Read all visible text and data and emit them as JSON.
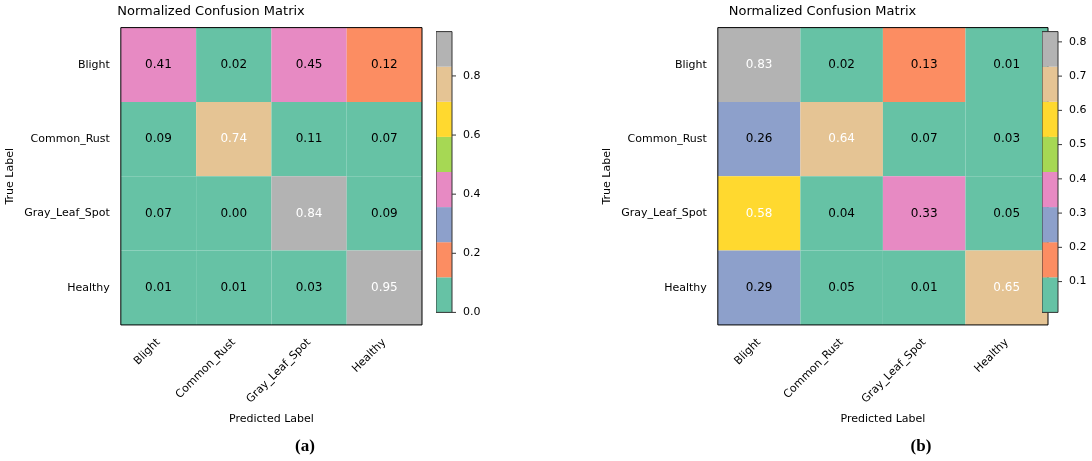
{
  "chart_data": [
    {
      "type": "heatmap",
      "title": "Normalized Confusion Matrix",
      "xlabel": "Predicted Label",
      "ylabel": "True Label",
      "categories": [
        "Blight",
        "Common_Rust",
        "Gray_Leaf_Spot",
        "Healthy"
      ],
      "y_categories": [
        "Blight",
        "Common_Rust",
        "Gray_Leaf_Spot",
        "Healthy"
      ],
      "cells": [
        [
          0.41,
          0.02,
          0.45,
          0.12
        ],
        [
          0.09,
          0.74,
          0.11,
          0.07
        ],
        [
          0.07,
          0.0,
          0.84,
          0.09
        ],
        [
          0.01,
          0.01,
          0.03,
          0.95
        ]
      ],
      "cell_labels": [
        [
          "0.41",
          "0.02",
          "0.45",
          "0.12"
        ],
        [
          "0.09",
          "0.74",
          "0.11",
          "0.07"
        ],
        [
          "0.07",
          "0.00",
          "0.84",
          "0.09"
        ],
        [
          "0.01",
          "0.01",
          "0.03",
          "0.95"
        ]
      ],
      "clim": [
        0,
        0.95
      ],
      "data_labels": true,
      "cticks": [
        {
          "value": 0,
          "label": "0.0"
        },
        0.2,
        0.4,
        0.6,
        0.8
      ],
      "colors": [
        "#66c2a5",
        "#fc8d62",
        "#8da0cb",
        "#e78ac3",
        "#a6d854",
        "#ffd92f",
        "#e5c494",
        "#b3b3b3"
      ],
      "annotations": [
        "(a)"
      ]
    },
    {
      "type": "heatmap",
      "title": "Normalized Confusion Matrix",
      "xlabel": "Predicted Label",
      "ylabel": "True Label",
      "categories": [
        "Blight",
        "Common_Rust",
        "Gray_Leaf_Spot",
        "Healthy"
      ],
      "y_categories": [
        "Blight",
        "Common_Rust",
        "Gray_Leaf_Spot",
        "Healthy"
      ],
      "cells": [
        [
          0.83,
          0.02,
          0.13,
          0.01
        ],
        [
          0.26,
          0.64,
          0.07,
          0.03
        ],
        [
          0.58,
          0.04,
          0.33,
          0.05
        ],
        [
          0.29,
          0.05,
          0.01,
          0.65
        ]
      ],
      "cell_labels": [
        [
          "0.83",
          "0.02",
          "0.13",
          "0.01"
        ],
        [
          "0.26",
          "0.64",
          "0.07",
          "0.03"
        ],
        [
          "0.58",
          "0.04",
          "0.33",
          "0.05"
        ],
        [
          "0.29",
          "0.05",
          "0.01",
          "0.65"
        ]
      ],
      "clim": [
        0.01,
        0.83
      ],
      "data_labels": true,
      "cticks": [
        0.1,
        0.2,
        0.3,
        0.4,
        0.5,
        0.6,
        0.7,
        0.8
      ],
      "colors": [
        "#66c2a5",
        "#fc8d62",
        "#8da0cb",
        "#e78ac3",
        "#a6d854",
        "#ffd92f",
        "#e5c494",
        "#b3b3b3"
      ],
      "annotations": [
        "(b)"
      ]
    }
  ]
}
